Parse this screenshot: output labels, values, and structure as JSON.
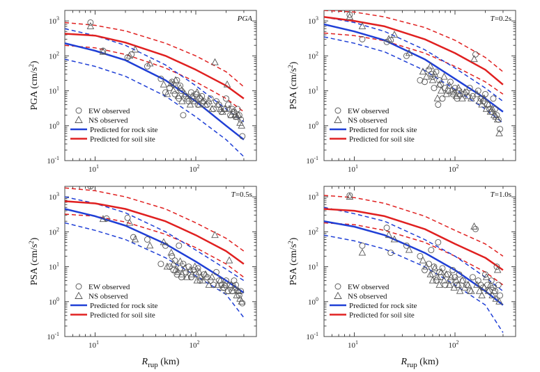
{
  "chart_data": [
    {
      "type": "scatter",
      "corner_label": {
        "italic": "PGA",
        "rest": ""
      },
      "ylabel": "PGA (cm/s²)",
      "xlabel_main": "",
      "xlabel_sub": "",
      "xlabel_unit": "",
      "xlog": true,
      "ylog": true,
      "xlim": [
        5,
        400
      ],
      "ylim": [
        0.1,
        2000
      ],
      "xticks": [
        10,
        100
      ],
      "yticks": [
        0.1,
        1,
        10,
        100,
        1000
      ],
      "legend": {
        "position": "bottom-left",
        "entries": [
          "EW observed",
          "NS observed",
          "Predicted for rock site",
          "Predicted for soil site"
        ]
      },
      "colors": {
        "rock": "#1f3fd6",
        "soil": "#e02020",
        "obs": "#555555"
      },
      "rock_median": {
        "x": [
          5,
          10,
          20,
          50,
          100,
          200,
          300
        ],
        "y": [
          230,
          140,
          75,
          20,
          5,
          1,
          0.4
        ]
      },
      "rock_upper": {
        "x": [
          5,
          10,
          20,
          50,
          100,
          200,
          300
        ],
        "y": [
          600,
          380,
          200,
          55,
          14,
          3,
          1.3
        ]
      },
      "rock_lower": {
        "x": [
          5,
          10,
          20,
          50,
          100,
          200,
          300
        ],
        "y": [
          80,
          50,
          26,
          7,
          1.8,
          0.4,
          0.13
        ]
      },
      "soil_median": {
        "x": [
          5,
          10,
          20,
          50,
          100,
          200,
          300
        ],
        "y": [
          430,
          380,
          240,
          100,
          40,
          14,
          6
        ]
      },
      "soil_upper": {
        "x": [
          5,
          10,
          20,
          50,
          100,
          200,
          300
        ],
        "y": [
          900,
          750,
          520,
          230,
          100,
          35,
          13
        ]
      },
      "soil_lower": {
        "x": [
          5,
          10,
          20,
          50,
          100,
          200,
          300
        ],
        "y": [
          200,
          170,
          110,
          45,
          18,
          6,
          2.5
        ]
      },
      "ew_observed": {
        "x": [
          9,
          12,
          21,
          23,
          33,
          45,
          50,
          55,
          58,
          60,
          62,
          65,
          68,
          70,
          72,
          75,
          80,
          85,
          90,
          95,
          100,
          105,
          110,
          115,
          120,
          130,
          140,
          150,
          160,
          170,
          180,
          190,
          200,
          210,
          220,
          230,
          240,
          250,
          260,
          270,
          280,
          290
        ],
        "y": [
          900,
          140,
          90,
          110,
          50,
          22,
          9,
          12,
          18,
          15,
          8,
          20,
          6,
          14,
          10,
          2,
          7,
          5,
          9,
          6,
          8,
          4,
          6,
          7,
          5,
          4,
          6,
          3,
          5,
          4,
          2.5,
          3,
          6,
          4,
          2,
          3,
          2.5,
          1.8,
          3,
          2,
          1.5,
          0.5
        ]
      },
      "ns_observed": {
        "x": [
          9,
          12,
          22,
          25,
          35,
          48,
          52,
          57,
          60,
          63,
          67,
          70,
          73,
          78,
          82,
          88,
          92,
          98,
          103,
          108,
          112,
          118,
          125,
          135,
          145,
          155,
          165,
          175,
          185,
          195,
          205,
          215,
          225,
          235,
          245,
          255,
          265,
          275,
          285
        ],
        "y": [
          700,
          130,
          100,
          150,
          60,
          15,
          8,
          16,
          10,
          20,
          7,
          12,
          5,
          8,
          6,
          4,
          7,
          5,
          9,
          4,
          6,
          5,
          4,
          5,
          3,
          65,
          4,
          3,
          2.5,
          3,
          15,
          3,
          2,
          2.5,
          2,
          1.8,
          2,
          1.2,
          1
        ]
      }
    },
    {
      "type": "scatter",
      "corner_label": {
        "italic": "T",
        "rest": "=0.2s"
      },
      "ylabel": "PSA (cm/s²)",
      "xlabel_main": "",
      "xlabel_sub": "",
      "xlabel_unit": "",
      "xlog": true,
      "ylog": true,
      "xlim": [
        5,
        400
      ],
      "ylim": [
        0.1,
        2000
      ],
      "xticks": [
        10,
        100
      ],
      "yticks": [
        0.1,
        1,
        10,
        100,
        1000
      ],
      "legend": {
        "position": "bottom-left",
        "entries": [
          "EW observed",
          "NS observed",
          "Predicted for rock site",
          "Predicted for soil site"
        ]
      },
      "colors": {
        "rock": "#1f3fd6",
        "soil": "#e02020",
        "obs": "#555555"
      },
      "rock_median": {
        "x": [
          5,
          10,
          20,
          50,
          100,
          200,
          300
        ],
        "y": [
          800,
          500,
          280,
          80,
          22,
          6,
          2.5
        ]
      },
      "rock_upper": {
        "x": [
          5,
          10,
          20,
          50,
          100,
          200,
          300
        ],
        "y": [
          1300,
          900,
          500,
          150,
          45,
          12,
          5
        ]
      },
      "rock_lower": {
        "x": [
          5,
          10,
          20,
          50,
          100,
          200,
          300
        ],
        "y": [
          350,
          230,
          130,
          38,
          11,
          3,
          1.2
        ]
      },
      "soil_median": {
        "x": [
          5,
          10,
          20,
          50,
          100,
          200,
          300
        ],
        "y": [
          1300,
          1000,
          700,
          300,
          120,
          40,
          15
        ]
      },
      "soil_upper": {
        "x": [
          5,
          10,
          20,
          50,
          100,
          200,
          300
        ],
        "y": [
          2000,
          1800,
          1300,
          650,
          280,
          90,
          35
        ]
      },
      "soil_lower": {
        "x": [
          5,
          10,
          20,
          50,
          100,
          200,
          300
        ],
        "y": [
          450,
          380,
          270,
          120,
          50,
          18,
          8
        ]
      },
      "ew_observed": {
        "x": [
          9,
          12,
          21,
          23,
          33,
          45,
          50,
          55,
          58,
          60,
          62,
          65,
          68,
          70,
          72,
          75,
          80,
          85,
          90,
          95,
          100,
          105,
          110,
          120,
          130,
          140,
          150,
          160,
          170,
          180,
          190,
          200,
          210,
          220,
          230,
          240,
          250,
          260,
          270,
          280
        ],
        "y": [
          1500,
          300,
          250,
          280,
          100,
          20,
          18,
          40,
          30,
          25,
          12,
          35,
          4,
          20,
          15,
          6,
          12,
          10,
          18,
          8,
          12,
          6,
          10,
          8,
          9,
          12,
          7,
          110,
          10,
          6,
          5,
          8,
          4,
          3,
          2.5,
          6,
          3,
          2,
          1.5,
          0.8
        ]
      },
      "ns_observed": {
        "x": [
          9,
          12,
          22,
          25,
          35,
          48,
          52,
          57,
          60,
          63,
          67,
          70,
          73,
          78,
          82,
          88,
          92,
          98,
          103,
          108,
          112,
          118,
          125,
          135,
          145,
          155,
          165,
          175,
          185,
          195,
          205,
          215,
          225,
          235,
          245,
          255,
          265,
          275
        ],
        "y": [
          1300,
          700,
          300,
          400,
          120,
          35,
          25,
          50,
          20,
          30,
          6,
          15,
          10,
          25,
          8,
          14,
          10,
          9,
          7,
          12,
          8,
          6,
          9,
          7,
          6,
          80,
          8,
          5,
          4,
          6,
          3,
          4,
          2.5,
          3,
          2,
          1.8,
          1.5,
          0.6
        ]
      }
    },
    {
      "type": "scatter",
      "corner_label": {
        "italic": "T",
        "rest": "=0.5s"
      },
      "ylabel": "PSA (cm/s²)",
      "xlabel_main": "R",
      "xlabel_sub": "rup",
      "xlabel_unit": " (km)",
      "xlog": true,
      "ylog": true,
      "xlim": [
        5,
        400
      ],
      "ylim": [
        0.1,
        2000
      ],
      "xticks": [
        10,
        100
      ],
      "yticks": [
        0.1,
        1,
        10,
        100,
        1000
      ],
      "legend": {
        "position": "bottom-left",
        "entries": [
          "EW observed",
          "NS observed",
          "Predicted for rock site",
          "Predicted for soil site"
        ]
      },
      "colors": {
        "rock": "#1f3fd6",
        "soil": "#e02020",
        "obs": "#555555"
      },
      "rock_median": {
        "x": [
          5,
          10,
          20,
          50,
          100,
          200,
          300
        ],
        "y": [
          450,
          280,
          150,
          45,
          14,
          4,
          1.8
        ]
      },
      "rock_upper": {
        "x": [
          5,
          10,
          20,
          50,
          100,
          200,
          300
        ],
        "y": [
          1000,
          650,
          350,
          100,
          30,
          8.5,
          4
        ]
      },
      "rock_lower": {
        "x": [
          5,
          10,
          20,
          50,
          100,
          200,
          300
        ],
        "y": [
          180,
          110,
          60,
          18,
          5.5,
          1.6,
          0.35
        ]
      },
      "soil_median": {
        "x": [
          5,
          10,
          20,
          50,
          100,
          200,
          300
        ],
        "y": [
          750,
          650,
          450,
          200,
          80,
          28,
          12
        ]
      },
      "soil_upper": {
        "x": [
          5,
          10,
          20,
          50,
          100,
          200,
          300
        ],
        "y": [
          1800,
          1500,
          1000,
          450,
          180,
          65,
          28
        ]
      },
      "soil_lower": {
        "x": [
          5,
          10,
          20,
          50,
          100,
          200,
          300
        ],
        "y": [
          320,
          280,
          190,
          85,
          35,
          12,
          5
        ]
      },
      "ew_observed": {
        "x": [
          9,
          13,
          21,
          24,
          33,
          45,
          50,
          55,
          58,
          60,
          62,
          65,
          68,
          70,
          72,
          75,
          80,
          85,
          90,
          95,
          100,
          105,
          110,
          120,
          130,
          140,
          150,
          160,
          170,
          180,
          190,
          200,
          210,
          220,
          230,
          240,
          250,
          260,
          270,
          280,
          290
        ],
        "y": [
          2000,
          240,
          250,
          70,
          60,
          12,
          40,
          10,
          20,
          8,
          15,
          6,
          40,
          9,
          5,
          12,
          7,
          10,
          5,
          8,
          6,
          9,
          4,
          6,
          5,
          4,
          3,
          7,
          4,
          3,
          2.5,
          4,
          2,
          3,
          2,
          4,
          3,
          2,
          1.5,
          2,
          0.9
        ]
      },
      "ns_observed": {
        "x": [
          9,
          12,
          22,
          25,
          35,
          48,
          52,
          57,
          60,
          63,
          67,
          70,
          73,
          78,
          82,
          88,
          92,
          98,
          103,
          108,
          112,
          118,
          125,
          135,
          145,
          155,
          165,
          175,
          185,
          195,
          205,
          215,
          225,
          235,
          245,
          255,
          265,
          275,
          285
        ],
        "y": [
          2300,
          230,
          180,
          60,
          40,
          50,
          10,
          25,
          12,
          8,
          7,
          14,
          6,
          9,
          5,
          8,
          6,
          10,
          4,
          7,
          5,
          4,
          6,
          3,
          5,
          80,
          3,
          4,
          2.5,
          3,
          2,
          15,
          3,
          2,
          2.5,
          1.5,
          2,
          1.2,
          1
        ]
      }
    },
    {
      "type": "scatter",
      "corner_label": {
        "italic": "T",
        "rest": "=1.0s"
      },
      "ylabel": "PSA (cm/s²)",
      "xlabel_main": "R",
      "xlabel_sub": "rup",
      "xlabel_unit": " (km)",
      "xlog": true,
      "ylog": true,
      "xlim": [
        5,
        400
      ],
      "ylim": [
        0.1,
        2000
      ],
      "xticks": [
        10,
        100
      ],
      "yticks": [
        0.1,
        1,
        10,
        100,
        1000
      ],
      "legend": {
        "position": "bottom-left",
        "entries": [
          "EW observed",
          "NS observed",
          "Predicted for rock site",
          "Predicted for soil site"
        ]
      },
      "colors": {
        "rock": "#1f3fd6",
        "soil": "#e02020",
        "obs": "#555555"
      },
      "rock_median": {
        "x": [
          5,
          10,
          20,
          50,
          100,
          200,
          300
        ],
        "y": [
          200,
          140,
          80,
          25,
          8,
          2,
          0.8
        ]
      },
      "rock_upper": {
        "x": [
          5,
          10,
          20,
          50,
          100,
          200,
          300
        ],
        "y": [
          500,
          330,
          200,
          60,
          20,
          5,
          2
        ]
      },
      "rock_lower": {
        "x": [
          5,
          10,
          20,
          50,
          100,
          200,
          300
        ],
        "y": [
          80,
          55,
          32,
          10,
          3,
          0.8,
          0.13
        ]
      },
      "soil_median": {
        "x": [
          5,
          10,
          20,
          50,
          100,
          200,
          300
        ],
        "y": [
          450,
          400,
          280,
          120,
          45,
          18,
          8
        ]
      },
      "soil_upper": {
        "x": [
          5,
          10,
          20,
          50,
          100,
          200,
          300
        ],
        "y": [
          1100,
          950,
          650,
          280,
          110,
          45,
          20
        ]
      },
      "soil_lower": {
        "x": [
          5,
          10,
          20,
          50,
          100,
          200,
          300
        ],
        "y": [
          180,
          160,
          110,
          50,
          20,
          7,
          3
        ]
      },
      "ew_observed": {
        "x": [
          9,
          12,
          21,
          23,
          33,
          45,
          50,
          55,
          58,
          60,
          62,
          65,
          68,
          70,
          72,
          75,
          80,
          85,
          90,
          95,
          100,
          105,
          110,
          120,
          130,
          140,
          150,
          160,
          170,
          180,
          190,
          200,
          210,
          220,
          230,
          240,
          250,
          260,
          270,
          280
        ],
        "y": [
          1100,
          40,
          130,
          25,
          40,
          20,
          8,
          12,
          30,
          6,
          10,
          4,
          50,
          7,
          5,
          9,
          3,
          6,
          4,
          8,
          5,
          3,
          6,
          4,
          3,
          2,
          5,
          120,
          4,
          3,
          2.5,
          6,
          3,
          2,
          4,
          2.5,
          2,
          10,
          3,
          1.5
        ]
      },
      "ns_observed": {
        "x": [
          9,
          12,
          22,
          25,
          35,
          48,
          52,
          57,
          60,
          63,
          67,
          70,
          73,
          78,
          82,
          88,
          92,
          98,
          103,
          108,
          112,
          118,
          125,
          135,
          145,
          155,
          165,
          175,
          185,
          195,
          205,
          215,
          225,
          235,
          245,
          255,
          265,
          275
        ],
        "y": [
          1000,
          25,
          80,
          60,
          30,
          15,
          10,
          6,
          4,
          9,
          5,
          3,
          7,
          4,
          6,
          3,
          5,
          2.5,
          4,
          3,
          2,
          4,
          2.5,
          3,
          2,
          140,
          3,
          2,
          1.5,
          2.5,
          5,
          2,
          3,
          1.5,
          2,
          1.2,
          8,
          1
        ]
      }
    }
  ]
}
